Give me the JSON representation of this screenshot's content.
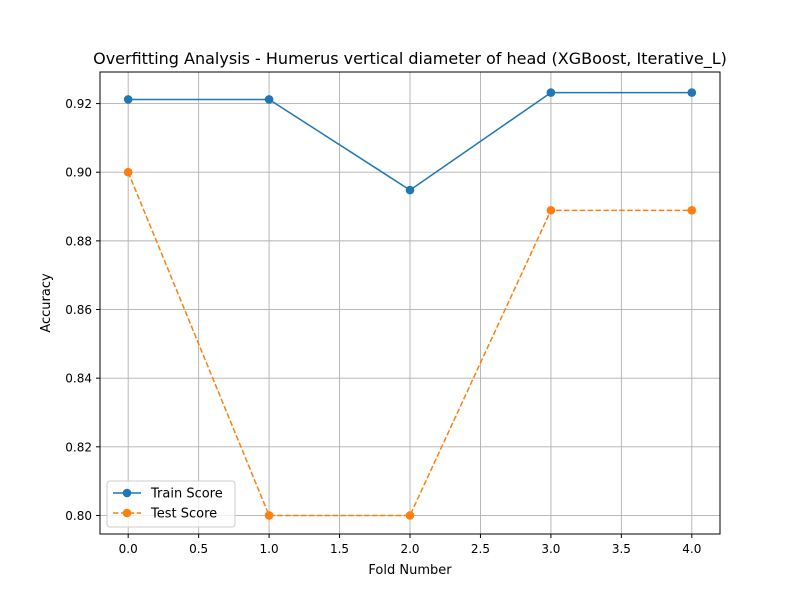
{
  "chart_data": {
    "type": "line",
    "title": "Overfitting Analysis - Humerus vertical diameter of head (XGBoost, Iterative_L)",
    "xlabel": "Fold Number",
    "ylabel": "Accuracy",
    "x": [
      0,
      1,
      2,
      3,
      4
    ],
    "xlim": [
      -0.2,
      4.2
    ],
    "ylim": [
      0.7946,
      0.9292
    ],
    "xticks": [
      0.0,
      0.5,
      1.0,
      1.5,
      2.0,
      2.5,
      3.0,
      3.5,
      4.0
    ],
    "xtick_labels": [
      "0.0",
      "0.5",
      "1.0",
      "1.5",
      "2.0",
      "2.5",
      "3.0",
      "3.5",
      "4.0"
    ],
    "yticks": [
      0.8,
      0.82,
      0.84,
      0.86,
      0.88,
      0.9,
      0.92
    ],
    "ytick_labels": [
      "0.80",
      "0.82",
      "0.84",
      "0.86",
      "0.88",
      "0.90",
      "0.92"
    ],
    "grid": true,
    "legend_position": "lower-left",
    "series": [
      {
        "name": "Train Score",
        "values": [
          0.9212,
          0.9212,
          0.8948,
          0.9232,
          0.9232
        ],
        "color": "#1f77b4",
        "linestyle": "solid",
        "marker": "circle"
      },
      {
        "name": "Test Score",
        "values": [
          0.9,
          0.8,
          0.8,
          0.8889,
          0.8889
        ],
        "color": "#ff7f0e",
        "linestyle": "dashed",
        "marker": "circle"
      }
    ]
  }
}
